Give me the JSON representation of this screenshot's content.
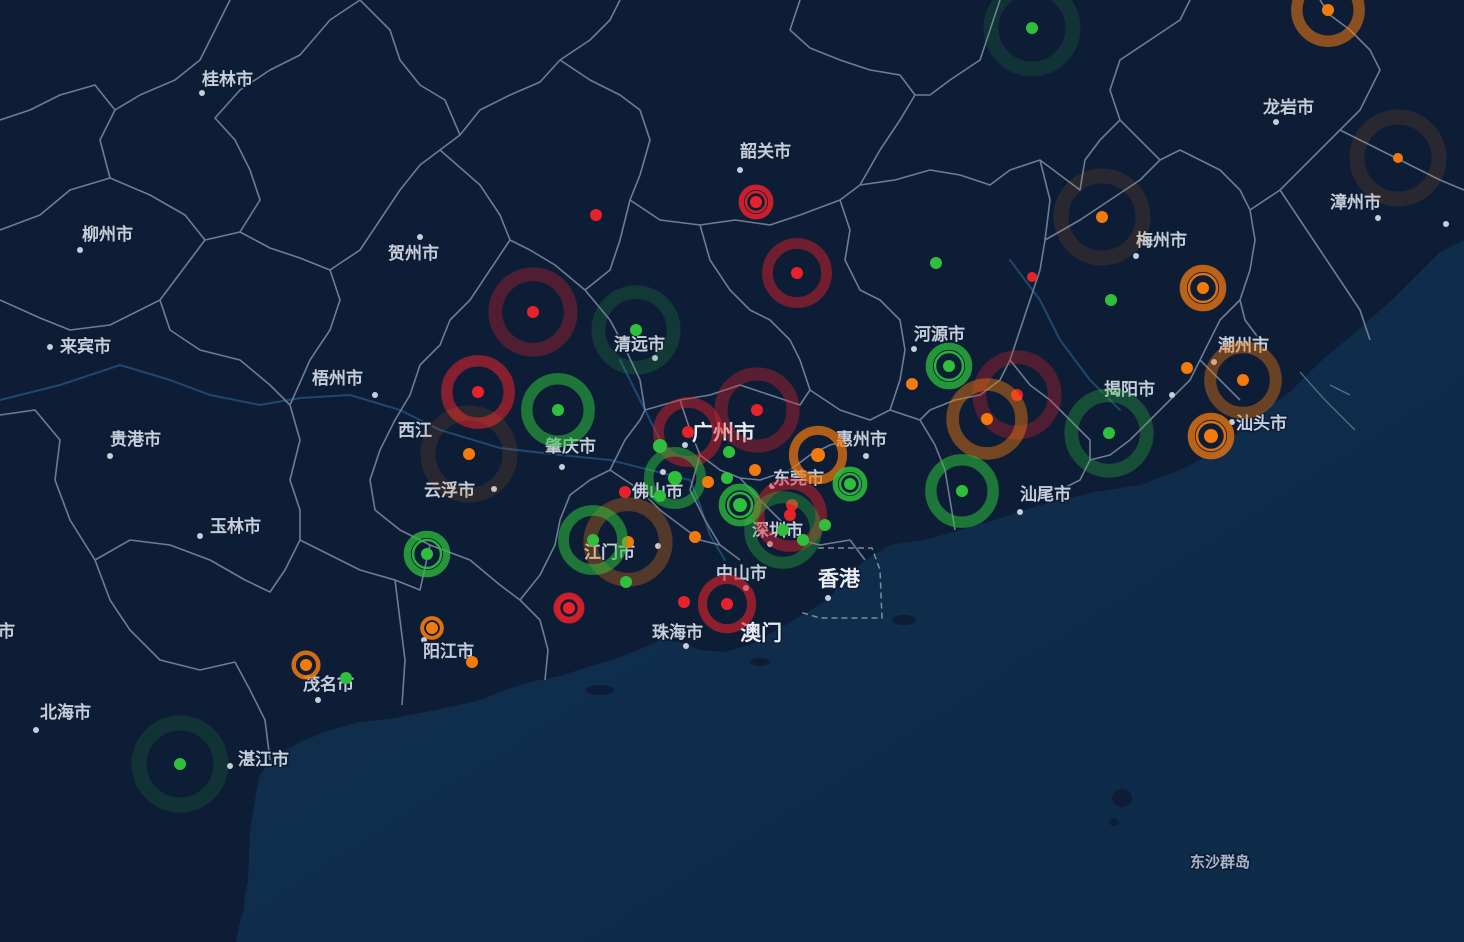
{
  "map": {
    "colors": {
      "land": "#0d1d36",
      "sea": "#10324f",
      "border": "#6f7d93",
      "river": "#1e4870",
      "alarm": "#e8222a",
      "warning": "#f47a0c",
      "normal": "#2fbf3c"
    },
    "cities": [
      {
        "id": "guilin",
        "name": "桂林市"
      },
      {
        "id": "liuzhou",
        "name": "柳州市"
      },
      {
        "id": "laibin",
        "name": "来宾市"
      },
      {
        "id": "guigang",
        "name": "贵港市"
      },
      {
        "id": "yulin",
        "name": "玉林市"
      },
      {
        "id": "beihai",
        "name": "北海市"
      },
      {
        "id": "hezhou",
        "name": "贺州市"
      },
      {
        "id": "wuzhou",
        "name": "梧州市"
      },
      {
        "id": "xijiang",
        "name": "西江"
      },
      {
        "id": "yunfu",
        "name": "云浮市"
      },
      {
        "id": "zhaoqing",
        "name": "肇庆市"
      },
      {
        "id": "qingyuan",
        "name": "清远市"
      },
      {
        "id": "shaoguan",
        "name": "韶关市"
      },
      {
        "id": "guangzhou",
        "name": "广州市"
      },
      {
        "id": "foshan",
        "name": "佛山市"
      },
      {
        "id": "dongguan",
        "name": "东莞市"
      },
      {
        "id": "huizhou",
        "name": "惠州市"
      },
      {
        "id": "shenzhen",
        "name": "深圳市"
      },
      {
        "id": "jiangmen",
        "name": "江门市"
      },
      {
        "id": "zhongshan",
        "name": "中山市"
      },
      {
        "id": "zhuhai",
        "name": "珠海市"
      },
      {
        "id": "macau",
        "name": "澳门"
      },
      {
        "id": "hongkong",
        "name": "香港"
      },
      {
        "id": "heyuan",
        "name": "河源市"
      },
      {
        "id": "meizhou",
        "name": "梅州市"
      },
      {
        "id": "longyan",
        "name": "龙岩市"
      },
      {
        "id": "zhangzhou",
        "name": "漳州市"
      },
      {
        "id": "chaozhou",
        "name": "潮州市"
      },
      {
        "id": "jieyang",
        "name": "揭阳市"
      },
      {
        "id": "shantou",
        "name": "汕头市"
      },
      {
        "id": "shanwei",
        "name": "汕尾市"
      },
      {
        "id": "yangjiang",
        "name": "阳江市"
      },
      {
        "id": "maoming",
        "name": "茂名市"
      },
      {
        "id": "zhanjiang",
        "name": "湛江市"
      },
      {
        "id": "dongsha",
        "name": "东沙群岛"
      },
      {
        "id": "edge",
        "name": "市"
      }
    ]
  }
}
